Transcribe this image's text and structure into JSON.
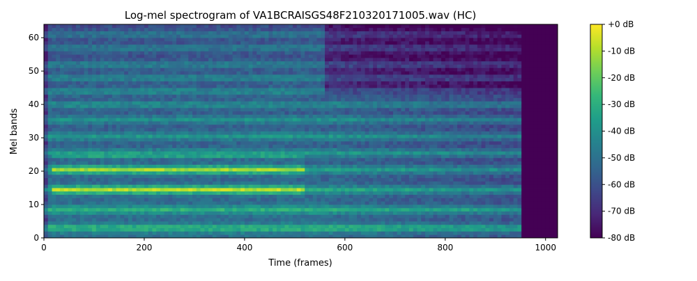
{
  "chart_data": {
    "type": "heatmap",
    "title": "Log-mel spectrogram of VA1BCRAISGS48F210320171005.wav (HC)",
    "xlabel": "Time (frames)",
    "ylabel": "Mel bands",
    "xlim": [
      0,
      1024
    ],
    "ylim": [
      0,
      64
    ],
    "x_ticks": [
      0,
      200,
      400,
      600,
      800,
      1000
    ],
    "y_ticks": [
      0,
      10,
      20,
      30,
      40,
      50,
      60
    ],
    "active_frames": [
      0,
      955
    ],
    "colormap": "viridis",
    "colorbar": {
      "vmin": -80,
      "vmax": 0,
      "ticks": [
        0,
        -10,
        -20,
        -30,
        -40,
        -50,
        -60,
        -70,
        -80
      ],
      "tick_labels": [
        "+0 dB",
        "-10 dB",
        "-20 dB",
        "-30 dB",
        "-40 dB",
        "-50 dB",
        "-60 dB",
        "-70 dB",
        "-80 dB"
      ]
    },
    "harmonic_bands_mel": [
      3,
      8.5,
      14.5,
      20.5,
      25.5,
      30.5,
      35.5,
      40,
      44,
      48,
      52,
      57,
      61
    ],
    "colors": {
      "viridis": [
        "#440154",
        "#482878",
        "#3e4989",
        "#31688e",
        "#26828e",
        "#1f9e89",
        "#35b779",
        "#6ece58",
        "#b5de2b",
        "#fde725"
      ]
    }
  }
}
